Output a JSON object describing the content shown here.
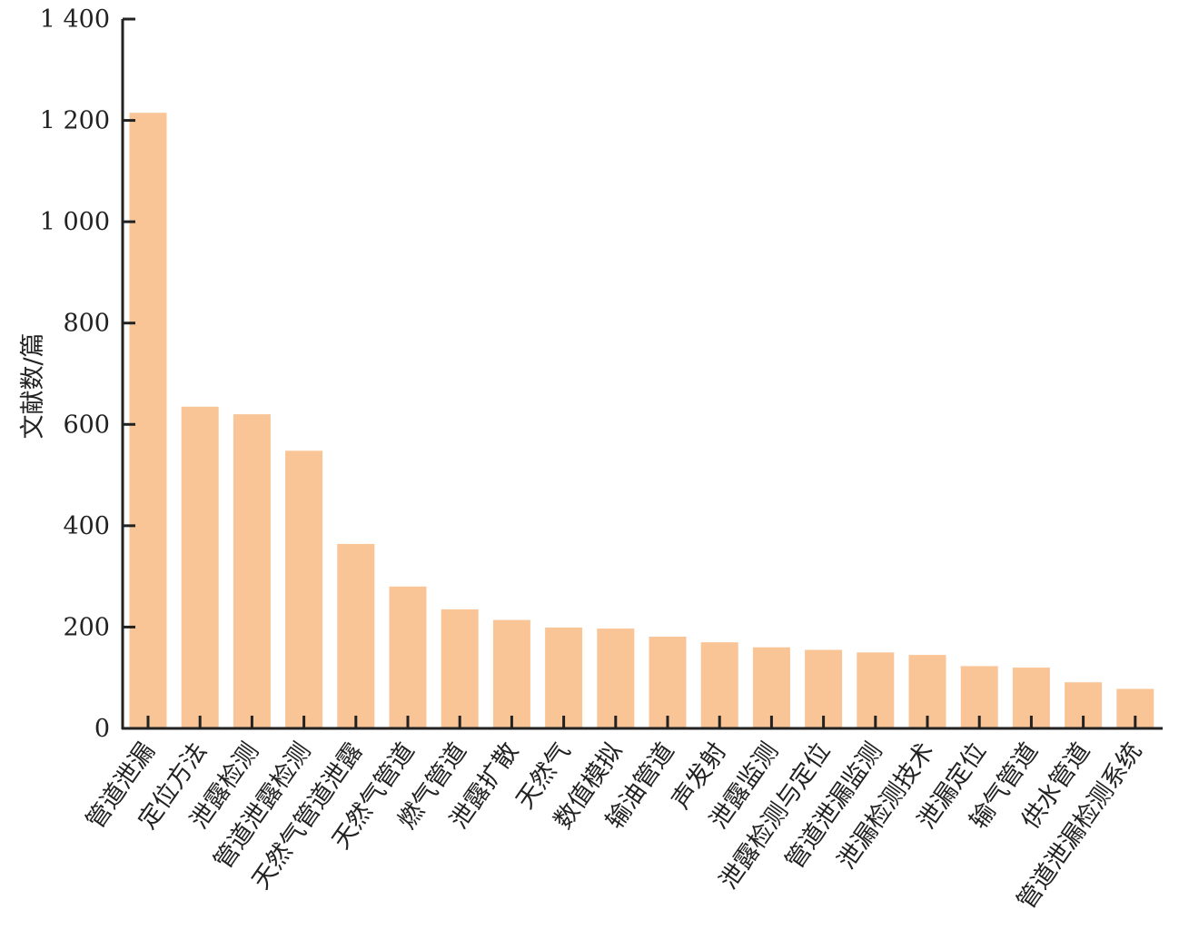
{
  "chart_data": {
    "type": "bar",
    "title": "",
    "xlabel": "",
    "ylabel": "文献数/篇",
    "ylim": [
      0,
      1400
    ],
    "yticks": [
      0,
      200,
      400,
      600,
      800,
      1000,
      1200,
      1400
    ],
    "ytick_labels": [
      "0",
      "200",
      "400",
      "600",
      "800",
      "1 000",
      "1 200",
      "1 400"
    ],
    "grid": false,
    "bar_color": "#F9C597",
    "axis_color": "#222222",
    "categories": [
      "管道泄漏",
      "定位方法",
      "泄露检测",
      "管道泄露检测",
      "天然气管道泄露",
      "天然气管道",
      "燃气管道",
      "泄露扩散",
      "天然气",
      "数值模拟",
      "输油管道",
      "声发射",
      "泄露监测",
      "泄露检测与定位",
      "管道泄漏监测",
      "泄漏检测技术",
      "泄漏定位",
      "输气管道",
      "供水管道",
      "管道泄漏检测系统"
    ],
    "values": [
      1215,
      635,
      620,
      548,
      364,
      280,
      235,
      214,
      199,
      197,
      181,
      170,
      160,
      155,
      150,
      145,
      123,
      120,
      91,
      78
    ]
  }
}
